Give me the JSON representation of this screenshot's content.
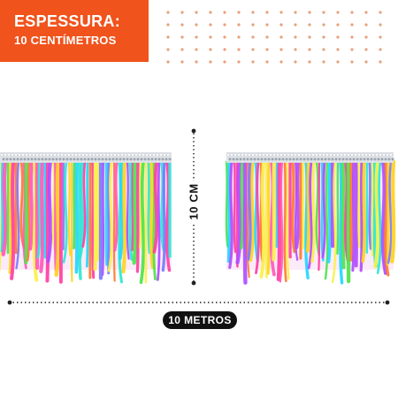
{
  "banner": {
    "title": "ESPESSURA:",
    "subtitle": "10 CENTÍMETROS",
    "color": "#f0531c"
  },
  "dimensions": {
    "height_label": "10 CM",
    "length_label": "10 METROS"
  },
  "image": {
    "subject": "rainbow-fringe-trim-icon"
  },
  "colors": {
    "dots": "#e8a07a",
    "fringe": [
      "#ff3fa4",
      "#ffd21f",
      "#2ee6d6",
      "#4fe34a",
      "#ff7a2f",
      "#b04dff",
      "#ff5ab8",
      "#7a7bff",
      "#f9f14a",
      "#23d6ff"
    ]
  }
}
